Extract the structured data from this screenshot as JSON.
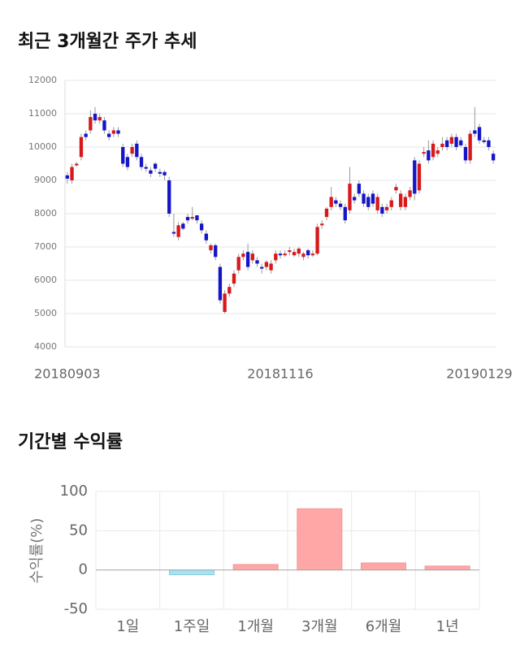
{
  "chart_data": [
    {
      "type": "candlestick",
      "title": "최근 3개월간 주가 추세",
      "categories": [
        "20180903",
        null,
        null,
        null,
        null,
        null,
        null,
        null,
        null,
        null,
        null,
        null,
        null,
        null,
        null,
        null,
        null,
        null,
        null,
        null,
        null,
        null,
        null,
        null,
        null,
        null,
        null,
        null,
        null,
        null,
        null,
        null,
        null,
        null,
        null,
        null,
        null,
        null,
        null,
        null,
        null,
        null,
        null,
        null,
        null,
        null,
        "20181116",
        null,
        null,
        null,
        null,
        null,
        null,
        null,
        null,
        null,
        null,
        null,
        null,
        null,
        null,
        null,
        null,
        null,
        null,
        null,
        null,
        null,
        null,
        null,
        null,
        null,
        null,
        null,
        null,
        null,
        null,
        null,
        null,
        null,
        null,
        null,
        null,
        null,
        null,
        null,
        null,
        null,
        null,
        null,
        null,
        null,
        "20190129"
      ],
      "open": [
        9150,
        9000,
        9450,
        9700,
        10400,
        10500,
        11000,
        10800,
        10800,
        10400,
        10400,
        10500,
        10000,
        9700,
        9800,
        10100,
        9700,
        9400,
        9300,
        9500,
        9250,
        9250,
        9000,
        7450,
        7300,
        7700,
        7900,
        7850,
        7950,
        7700,
        7400,
        6900,
        7050,
        6400,
        5050,
        5600,
        5900,
        6300,
        6700,
        6850,
        6600,
        6600,
        6400,
        6400,
        6300,
        6600,
        6800,
        6750,
        6850,
        6750,
        6800,
        6700,
        6900,
        6750,
        6800,
        7650,
        7900,
        8200,
        8400,
        8300,
        8200,
        8100,
        8500,
        8900,
        8600,
        8500,
        8600,
        8100,
        8200,
        8100,
        8200,
        8700,
        8200,
        8200,
        8500,
        9600,
        8700,
        9800,
        9900,
        9700,
        9800,
        10000,
        10200,
        10100,
        10300,
        10200,
        10000,
        9600,
        10500,
        10600,
        10200,
        10200,
        9800
      ],
      "high": [
        9250,
        9500,
        9550,
        10400,
        10500,
        11100,
        11200,
        11000,
        10900,
        10500,
        10600,
        10600,
        10100,
        9800,
        10100,
        10200,
        9800,
        9500,
        9400,
        9550,
        9350,
        9300,
        9100,
        8000,
        7750,
        7750,
        8000,
        8200,
        7950,
        7800,
        7500,
        7100,
        7100,
        6500,
        5700,
        5900,
        6300,
        6800,
        6900,
        7100,
        6900,
        6700,
        6500,
        6600,
        6600,
        6900,
        6900,
        6900,
        7000,
        6950,
        7000,
        6850,
        6950,
        6900,
        7700,
        7800,
        8200,
        8800,
        8500,
        8400,
        8300,
        9400,
        8600,
        9000,
        8700,
        8600,
        8700,
        8600,
        8300,
        8300,
        8500,
        8900,
        8700,
        8600,
        8800,
        9700,
        9600,
        10000,
        10200,
        10200,
        10000,
        10300,
        10300,
        10400,
        10400,
        10300,
        10100,
        10500,
        11200,
        10700,
        10300,
        10300,
        9900
      ],
      "low": [
        8900,
        8900,
        9400,
        9600,
        10200,
        10400,
        10700,
        10700,
        10400,
        10200,
        10300,
        10300,
        9400,
        9300,
        9700,
        9600,
        9300,
        9250,
        9100,
        9250,
        9100,
        9000,
        7900,
        7300,
        7200,
        7500,
        7700,
        7800,
        7700,
        7400,
        7100,
        6800,
        6600,
        5300,
        5000,
        5500,
        5800,
        6200,
        6600,
        6300,
        6500,
        6400,
        6200,
        6300,
        6200,
        6500,
        6650,
        6700,
        6750,
        6700,
        6700,
        6600,
        6650,
        6700,
        6750,
        7550,
        7800,
        8100,
        8200,
        8100,
        7700,
        8000,
        8300,
        8500,
        8200,
        8100,
        8200,
        8000,
        7900,
        8000,
        8100,
        8600,
        8100,
        8100,
        8400,
        8400,
        8600,
        9700,
        9500,
        9600,
        9700,
        9900,
        9900,
        10000,
        9900,
        10000,
        9500,
        9500,
        10300,
        10100,
        10100,
        9900,
        9500
      ],
      "close": [
        9050,
        9400,
        9500,
        10300,
        10300,
        10900,
        10800,
        10900,
        10500,
        10300,
        10500,
        10400,
        9500,
        9400,
        10000,
        9700,
        9400,
        9350,
        9200,
        9350,
        9200,
        9150,
        8000,
        7400,
        7650,
        7550,
        7800,
        7900,
        7800,
        7500,
        7200,
        7050,
        6700,
        5400,
        5600,
        5800,
        6200,
        6700,
        6800,
        6400,
        6800,
        6500,
        6350,
        6550,
        6500,
        6800,
        6750,
        6800,
        6900,
        6850,
        6950,
        6800,
        6750,
        6800,
        7600,
        7700,
        8150,
        8500,
        8300,
        8200,
        7800,
        8900,
        8400,
        8600,
        8300,
        8200,
        8300,
        8500,
        8000,
        8200,
        8400,
        8800,
        8600,
        8500,
        8700,
        8600,
        9500,
        9850,
        9600,
        10100,
        9900,
        10100,
        10000,
        10300,
        10000,
        10050,
        9600,
        10400,
        10400,
        10200,
        10150,
        10000,
        9600
      ],
      "up_color": "#d7191c",
      "down_color": "#1515c8",
      "ylim": [
        4000,
        12000
      ],
      "yticks": [
        4000,
        5000,
        6000,
        7000,
        8000,
        9000,
        10000,
        11000,
        12000
      ],
      "grid": true
    },
    {
      "type": "bar",
      "title": "기간별 수익률",
      "ylabel": "수익률(%)",
      "categories": [
        "1일",
        "1주일",
        "1개월",
        "3개월",
        "6개월",
        "1년"
      ],
      "values": [
        0,
        -6,
        7,
        78,
        9,
        5
      ],
      "positive_color": "#ffa6a6",
      "negative_color": "#a6e3f0",
      "ylim": [
        -50,
        100
      ],
      "yticks": [
        -50,
        0,
        50,
        100
      ],
      "grid": true
    }
  ]
}
